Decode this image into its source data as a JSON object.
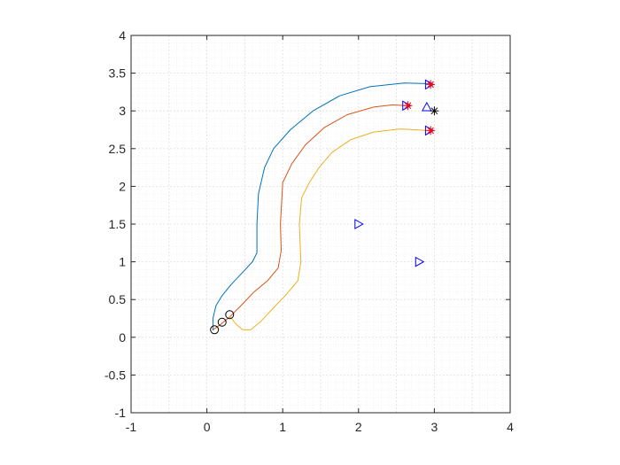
{
  "chart_data": {
    "type": "line",
    "title": "",
    "xlabel": "",
    "ylabel": "",
    "xlim": [
      -1,
      4
    ],
    "ylim": [
      -1,
      4
    ],
    "xticks": [
      "-1",
      "0",
      "1",
      "2",
      "3",
      "4"
    ],
    "yticks": [
      "-1",
      "-0.5",
      "0",
      "0.5",
      "1",
      "1.5",
      "2",
      "2.5",
      "3",
      "3.5",
      "4"
    ],
    "grid": true,
    "minor_grid": true,
    "legend": "none",
    "colors": {
      "series": [
        "#0072BD",
        "#D95319",
        "#EDB120"
      ],
      "marker_blue": "#0000FF",
      "marker_red": "#FF0000",
      "marker_black": "#000000",
      "grid": "#DFDFDF",
      "axis": "#262626"
    },
    "series": [
      {
        "points": [
          [
            0.08,
            0.09
          ],
          [
            0.08,
            0.25
          ],
          [
            0.12,
            0.42
          ],
          [
            0.2,
            0.55
          ],
          [
            0.32,
            0.7
          ],
          [
            0.48,
            0.87
          ],
          [
            0.6,
            1.0
          ],
          [
            0.66,
            1.12
          ],
          [
            0.66,
            1.5
          ],
          [
            0.68,
            1.9
          ],
          [
            0.76,
            2.25
          ],
          [
            0.88,
            2.5
          ],
          [
            1.1,
            2.75
          ],
          [
            1.4,
            3.0
          ],
          [
            1.75,
            3.2
          ],
          [
            2.15,
            3.32
          ],
          [
            2.6,
            3.37
          ],
          [
            2.95,
            3.36
          ]
        ]
      },
      {
        "points": [
          [
            0.08,
            0.1
          ],
          [
            0.18,
            0.17
          ],
          [
            0.3,
            0.27
          ],
          [
            0.45,
            0.42
          ],
          [
            0.62,
            0.6
          ],
          [
            0.8,
            0.75
          ],
          [
            0.94,
            0.92
          ],
          [
            0.98,
            1.15
          ],
          [
            0.97,
            1.5
          ],
          [
            1.0,
            2.05
          ],
          [
            1.12,
            2.3
          ],
          [
            1.3,
            2.55
          ],
          [
            1.55,
            2.78
          ],
          [
            1.85,
            2.95
          ],
          [
            2.2,
            3.05
          ],
          [
            2.45,
            3.08
          ],
          [
            2.62,
            3.07
          ]
        ]
      },
      {
        "points": [
          [
            0.3,
            0.28
          ],
          [
            0.38,
            0.18
          ],
          [
            0.47,
            0.1
          ],
          [
            0.58,
            0.1
          ],
          [
            0.7,
            0.2
          ],
          [
            0.87,
            0.38
          ],
          [
            1.05,
            0.57
          ],
          [
            1.2,
            0.75
          ],
          [
            1.24,
            1.0
          ],
          [
            1.22,
            1.5
          ],
          [
            1.25,
            1.85
          ],
          [
            1.35,
            2.05
          ],
          [
            1.48,
            2.25
          ],
          [
            1.65,
            2.45
          ],
          [
            1.9,
            2.62
          ],
          [
            2.2,
            2.72
          ],
          [
            2.55,
            2.76
          ],
          [
            2.92,
            2.74
          ]
        ]
      }
    ],
    "markers": [
      {
        "shape": "circle",
        "color": "#000000",
        "points": [
          [
            0.1,
            0.1
          ],
          [
            0.2,
            0.2
          ],
          [
            0.3,
            0.3
          ]
        ]
      },
      {
        "shape": "triangle-right",
        "color": "#0000FF",
        "points": [
          [
            2.0,
            1.5
          ],
          [
            2.8,
            1.0
          ],
          [
            2.93,
            3.35
          ],
          [
            2.63,
            3.07
          ],
          [
            2.93,
            2.74
          ]
        ]
      },
      {
        "shape": "triangle-up",
        "color": "#0000FF",
        "points": [
          [
            2.9,
            3.05
          ]
        ]
      },
      {
        "shape": "asterisk",
        "color": "#000000",
        "points": [
          [
            3.0,
            3.0
          ]
        ]
      },
      {
        "shape": "asterisk",
        "color": "#FF0000",
        "points": [
          [
            2.95,
            3.35
          ],
          [
            2.65,
            3.07
          ],
          [
            2.95,
            2.74
          ]
        ]
      }
    ]
  }
}
